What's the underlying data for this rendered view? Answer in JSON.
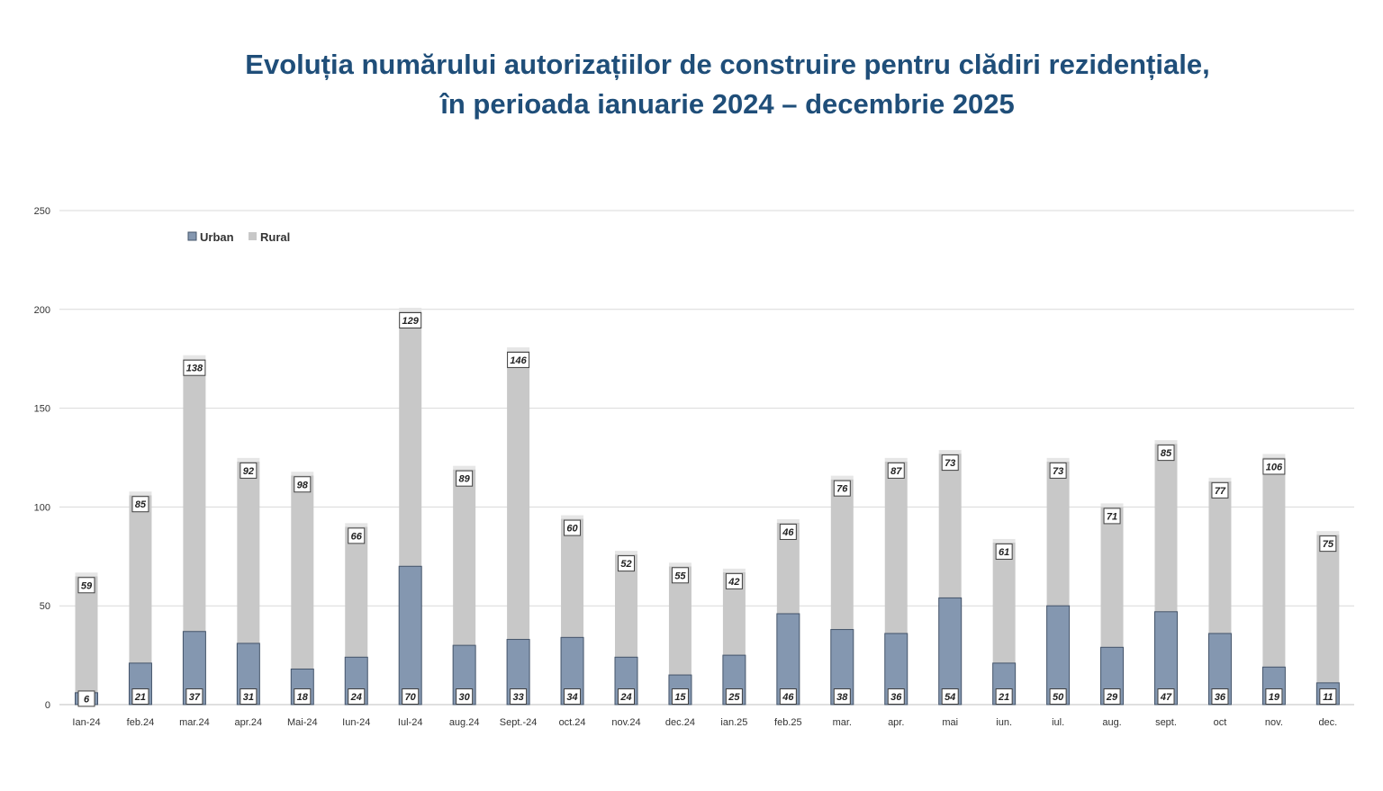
{
  "title_line1": "Evoluția numărului autorizațiilor de construire pentru clădiri rezidențiale,",
  "title_line2": "în perioada ianuarie 2024 – decembrie 2025",
  "chart_data": {
    "type": "bar",
    "stacked": true,
    "title": "Evoluția numărului autorizațiilor de construire pentru clădiri rezidențiale, în perioada ianuarie 2024 – decembrie 2025",
    "categories": [
      "Ian-24",
      "feb.24",
      "mar.24",
      "apr.24",
      "Mai-24",
      "Iun-24",
      "Iul-24",
      "aug.24",
      "Sept.-24",
      "oct.24",
      "nov.24",
      "dec.24",
      "ian.25",
      "feb.25",
      "mar.",
      "apr.",
      "mai",
      "iun.",
      "iul.",
      "aug.",
      "sept.",
      "oct",
      "nov.",
      "dec."
    ],
    "series": [
      {
        "name": "Urban",
        "color": "#8497b0",
        "values": [
          6,
          21,
          37,
          31,
          18,
          24,
          70,
          30,
          33,
          34,
          24,
          15,
          25,
          46,
          38,
          36,
          54,
          21,
          50,
          29,
          47,
          36,
          19,
          11
        ]
      },
      {
        "name": "Rural",
        "color": "#c8c8c8",
        "values": [
          59,
          85,
          138,
          92,
          98,
          66,
          129,
          89,
          146,
          60,
          52,
          55,
          42,
          46,
          76,
          87,
          73,
          61,
          73,
          71,
          85,
          77,
          106,
          75
        ]
      }
    ],
    "ylim": [
      0,
      250
    ],
    "yticks": [
      0,
      50,
      100,
      150,
      200,
      250
    ],
    "xlabel": "",
    "ylabel": "",
    "grid": true,
    "legend": "top-left"
  }
}
